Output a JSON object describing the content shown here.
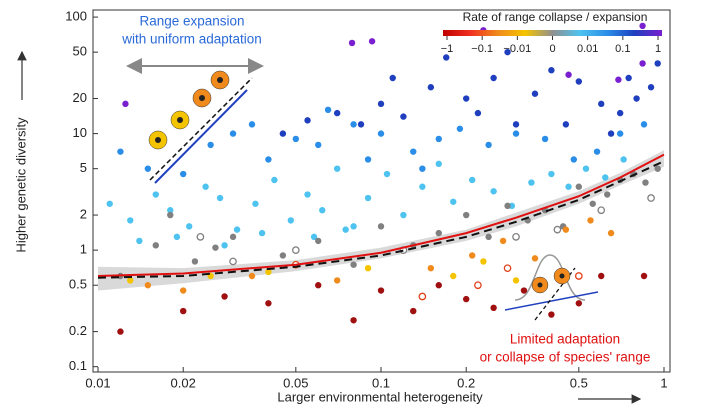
{
  "chart_data": {
    "type": "scatter",
    "xlabel": "Larger environmental heterogeneity",
    "ylabel": "Higher genetic diversity",
    "xscale": "log",
    "yscale": "log",
    "xlim": [
      0.0096,
      1.05
    ],
    "ylim": [
      0.09,
      115
    ],
    "xticks": [
      0.01,
      0.02,
      0.05,
      0.1,
      0.2,
      0.5,
      1
    ],
    "yticks": [
      0.1,
      0.2,
      0.5,
      1,
      2,
      5,
      10,
      20,
      50,
      100
    ],
    "series": [
      {
        "color": "#7a1fd0",
        "filled": true,
        "x": [
          0.0125,
          0.079,
          0.093,
          0.69,
          0.84,
          0.46,
          0.84,
          0.23
        ],
        "y": [
          18,
          60,
          62,
          29,
          40,
          32,
          84,
          77
        ]
      },
      {
        "color": "#1f3fbf",
        "filled": true,
        "x": [
          0.07,
          0.085,
          0.1,
          0.12,
          0.15,
          0.2,
          0.25,
          0.3,
          0.35,
          0.4,
          0.5,
          0.6,
          0.7,
          0.8,
          0.9,
          0.95,
          0.045,
          0.055,
          0.11,
          0.17,
          0.22,
          0.28,
          0.45,
          0.65,
          0.75
        ],
        "y": [
          15,
          12,
          18,
          14,
          25,
          20,
          30,
          12,
          22,
          35,
          28,
          18,
          15,
          20,
          25,
          40,
          10,
          13,
          30,
          45,
          15,
          50,
          12,
          10,
          30
        ]
      },
      {
        "color": "#2a8ee8",
        "filled": true,
        "x": [
          0.012,
          0.015,
          0.02,
          0.025,
          0.03,
          0.04,
          0.05,
          0.06,
          0.08,
          0.1,
          0.13,
          0.16,
          0.19,
          0.24,
          0.3,
          0.38,
          0.48,
          0.58,
          0.7,
          0.85,
          0.035,
          0.065,
          0.09,
          0.14
        ],
        "y": [
          7,
          5,
          4.5,
          8,
          10,
          6,
          9,
          8,
          12,
          10,
          7,
          9,
          11,
          8,
          10,
          9,
          6,
          7,
          10,
          12,
          12,
          16,
          6,
          5
        ]
      },
      {
        "color": "#4ec3f0",
        "filled": true,
        "x": [
          0.011,
          0.013,
          0.016,
          0.018,
          0.021,
          0.024,
          0.027,
          0.031,
          0.036,
          0.042,
          0.048,
          0.055,
          0.062,
          0.07,
          0.08,
          0.09,
          0.105,
          0.12,
          0.14,
          0.16,
          0.18,
          0.21,
          0.25,
          0.29,
          0.34,
          0.4,
          0.46,
          0.53,
          0.62,
          0.72,
          0.014,
          0.019,
          0.028,
          0.038,
          0.058,
          0.075
        ],
        "y": [
          2.5,
          1.8,
          3,
          2.2,
          1.6,
          3.5,
          2.8,
          1.5,
          2.5,
          4,
          1.8,
          3,
          2.2,
          5,
          1.6,
          2.8,
          4.5,
          2,
          3.5,
          5.5,
          2.6,
          4,
          3.2,
          2.4,
          3.8,
          4.5,
          3.5,
          5,
          4.2,
          6,
          1.2,
          1.3,
          1.1,
          1.4,
          1.3,
          1.5
        ]
      },
      {
        "color": "#808080",
        "filled": true,
        "x": [
          0.012,
          0.016,
          0.022,
          0.03,
          0.045,
          0.06,
          0.08,
          0.1,
          0.13,
          0.16,
          0.2,
          0.24,
          0.28,
          0.33,
          0.38,
          0.44,
          0.5,
          0.56,
          0.63,
          0.7,
          0.78,
          0.86,
          0.95,
          0.018,
          0.026
        ],
        "y": [
          0.6,
          1.1,
          0.8,
          1.3,
          0.9,
          1.2,
          0.75,
          1.6,
          1.1,
          1.4,
          2,
          1.3,
          2.4,
          1.8,
          2.2,
          1.6,
          3.5,
          2.5,
          3,
          4,
          4.5,
          3.8,
          5,
          2,
          1.05
        ]
      },
      {
        "color": "#808080",
        "filled": false,
        "x": [
          0.023,
          0.03,
          0.05,
          0.12,
          0.3,
          0.42,
          0.6,
          0.9
        ],
        "y": [
          1.3,
          0.8,
          1.0,
          1.0,
          1.3,
          1.5,
          2.2,
          2.8
        ]
      },
      {
        "color": "#f08a1c",
        "filled": true,
        "x": [
          0.015,
          0.02,
          0.035,
          0.07,
          0.15,
          0.21,
          0.27,
          0.35,
          0.45,
          0.55,
          0.65
        ],
        "y": [
          0.5,
          0.45,
          0.6,
          0.55,
          0.7,
          0.9,
          1.2,
          0.85,
          1.5,
          1.8,
          1.4
        ]
      },
      {
        "color": "#f5c400",
        "filled": true,
        "x": [
          0.013,
          0.025,
          0.04,
          0.09,
          0.18,
          0.23,
          0.3
        ],
        "y": [
          0.55,
          0.6,
          0.65,
          0.7,
          0.6,
          0.8,
          0.55
        ]
      },
      {
        "color": "#a01010",
        "filled": true,
        "x": [
          0.012,
          0.02,
          0.028,
          0.04,
          0.06,
          0.08,
          0.1,
          0.13,
          0.16,
          0.2,
          0.25,
          0.32,
          0.4,
          0.5,
          0.6,
          0.85
        ],
        "y": [
          0.2,
          0.3,
          0.4,
          0.35,
          0.5,
          0.25,
          0.45,
          0.3,
          0.5,
          0.38,
          0.32,
          0.45,
          0.28,
          0.35,
          0.6,
          0.6
        ]
      },
      {
        "color": "#e0401a",
        "filled": false,
        "x": [
          0.05,
          0.14,
          0.22,
          0.28,
          0.5
        ],
        "y": [
          0.75,
          0.4,
          0.5,
          0.7,
          0.6
        ]
      }
    ],
    "band": {
      "color": "#cfcfcf",
      "x": [
        0.01,
        0.02,
        0.05,
        0.1,
        0.2,
        0.3,
        0.5,
        0.7,
        1
      ],
      "lower": [
        0.45,
        0.52,
        0.66,
        0.85,
        1.2,
        1.6,
        2.5,
        3.6,
        5.2
      ],
      "upper": [
        0.72,
        0.7,
        0.82,
        1.05,
        1.5,
        2.1,
        3.2,
        4.6,
        7.2
      ]
    },
    "curves": [
      {
        "type": "line",
        "color": "#e01010",
        "dashed": false,
        "x": [
          0.01,
          0.02,
          0.05,
          0.1,
          0.2,
          0.3,
          0.5,
          0.7,
          1
        ],
        "y": [
          0.6,
          0.63,
          0.75,
          0.95,
          1.4,
          1.9,
          2.9,
          4.2,
          6.6
        ]
      },
      {
        "type": "line",
        "color": "#111111",
        "dashed": true,
        "x": [
          0.01,
          0.02,
          0.05,
          0.1,
          0.2,
          0.3,
          0.5,
          0.7,
          1
        ],
        "y": [
          0.58,
          0.6,
          0.72,
          0.9,
          1.3,
          1.75,
          2.7,
          3.9,
          5.8
        ]
      }
    ],
    "annotations": [
      {
        "lines": [
          "Range expansion",
          "with uniform adaptation"
        ],
        "color": "#2a6ad8"
      },
      {
        "lines": [
          "Limited adaptation",
          "or collapse of species' range"
        ],
        "color": "#e01010"
      }
    ],
    "colorbar": {
      "title": "Rate of range collapse / expansion",
      "colors": [
        "#c00000",
        "#f03020",
        "#f08a1c",
        "#f5c400",
        "#909090",
        "#4ec3f0",
        "#2a8ee8",
        "#1f3fbf",
        "#7a1fd0"
      ],
      "ticks": [
        {
          "value": -1,
          "label": "−1"
        },
        {
          "value": -0.1,
          "label": "−0.1"
        },
        {
          "value": -0.01,
          "label": "−0.01"
        },
        0,
        0.01,
        0.1,
        1
      ]
    }
  }
}
